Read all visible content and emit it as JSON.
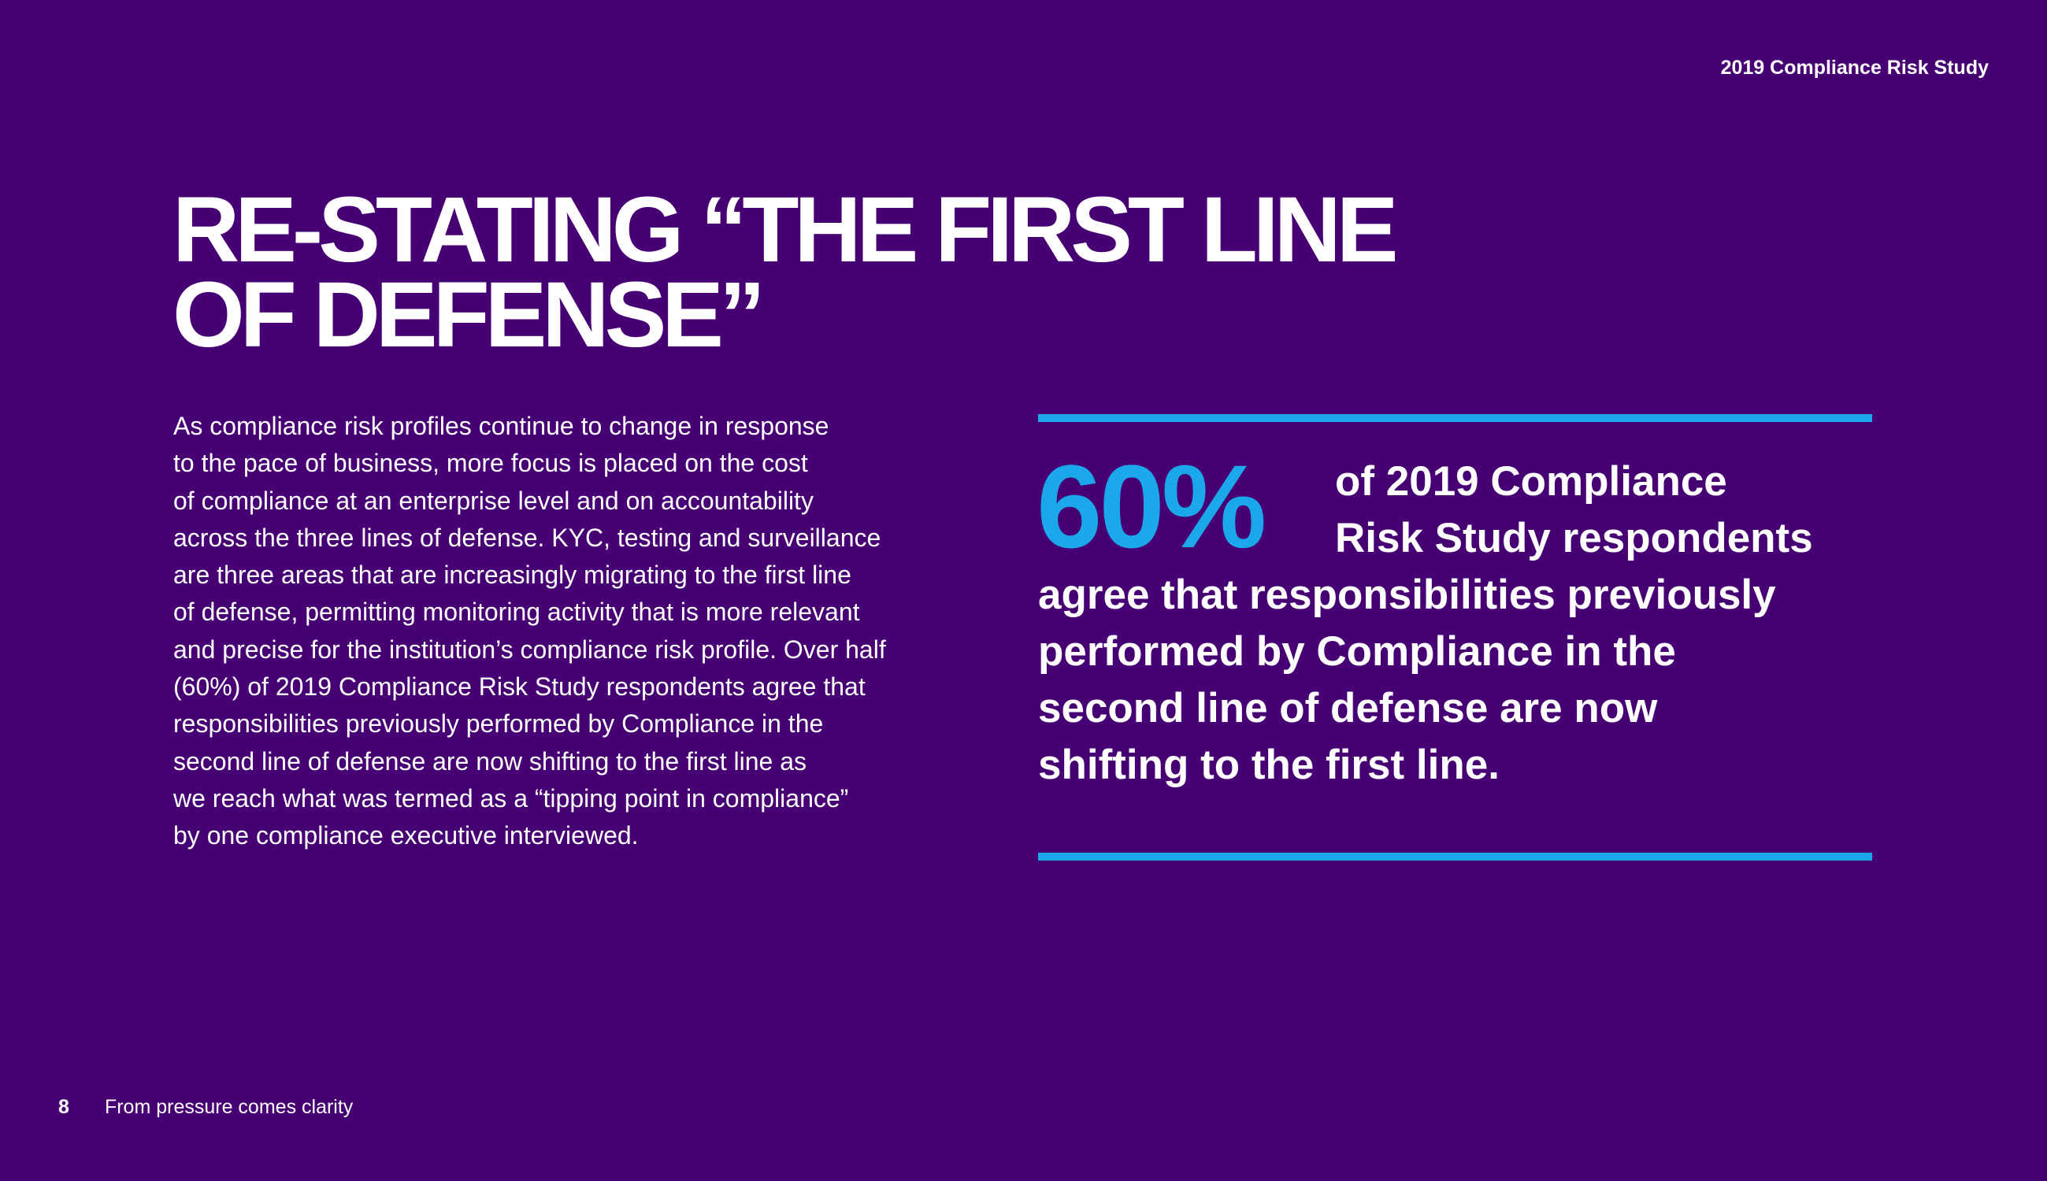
{
  "header": {
    "doc_title": "2019 Compliance Risk Study"
  },
  "title": {
    "lines": [
      "RE-STATING “THE FIRST LINE",
      "OF DEFENSE”"
    ]
  },
  "intro": {
    "lines": [
      "As compliance risk profiles continue to change in response",
      "to the pace of business, more focus is placed on the cost",
      "of compliance at an enterprise level and on accountability",
      "across the three lines of defense. KYC, testing and surveillance",
      "are three areas that are increasingly migrating to the first line",
      "of defense, permitting monitoring activity that is more relevant",
      "and precise for the institution’s compliance risk profile. Over half",
      "(60%) of 2019 Compliance Risk Study respondents agree that",
      "responsibilities previously performed by Compliance in the",
      "second line of defense are now shifting to the first line as",
      "we reach what was termed as a “tipping point in compliance”",
      "by one compliance executive interviewed."
    ]
  },
  "callout": {
    "figure": "60%",
    "lead_lines": [
      "of 2019 Compliance",
      "Risk Study respondents"
    ],
    "rest_lines": [
      "agree that responsibilities previously",
      "performed by Compliance in the",
      "second line of defense are now",
      "shifting to the first line."
    ]
  },
  "footer": {
    "page_number": "8",
    "title": "From pressure comes clarity"
  },
  "colors": {
    "background": "#460073",
    "accent": "#1aa8ea",
    "text": "#ffffff"
  }
}
